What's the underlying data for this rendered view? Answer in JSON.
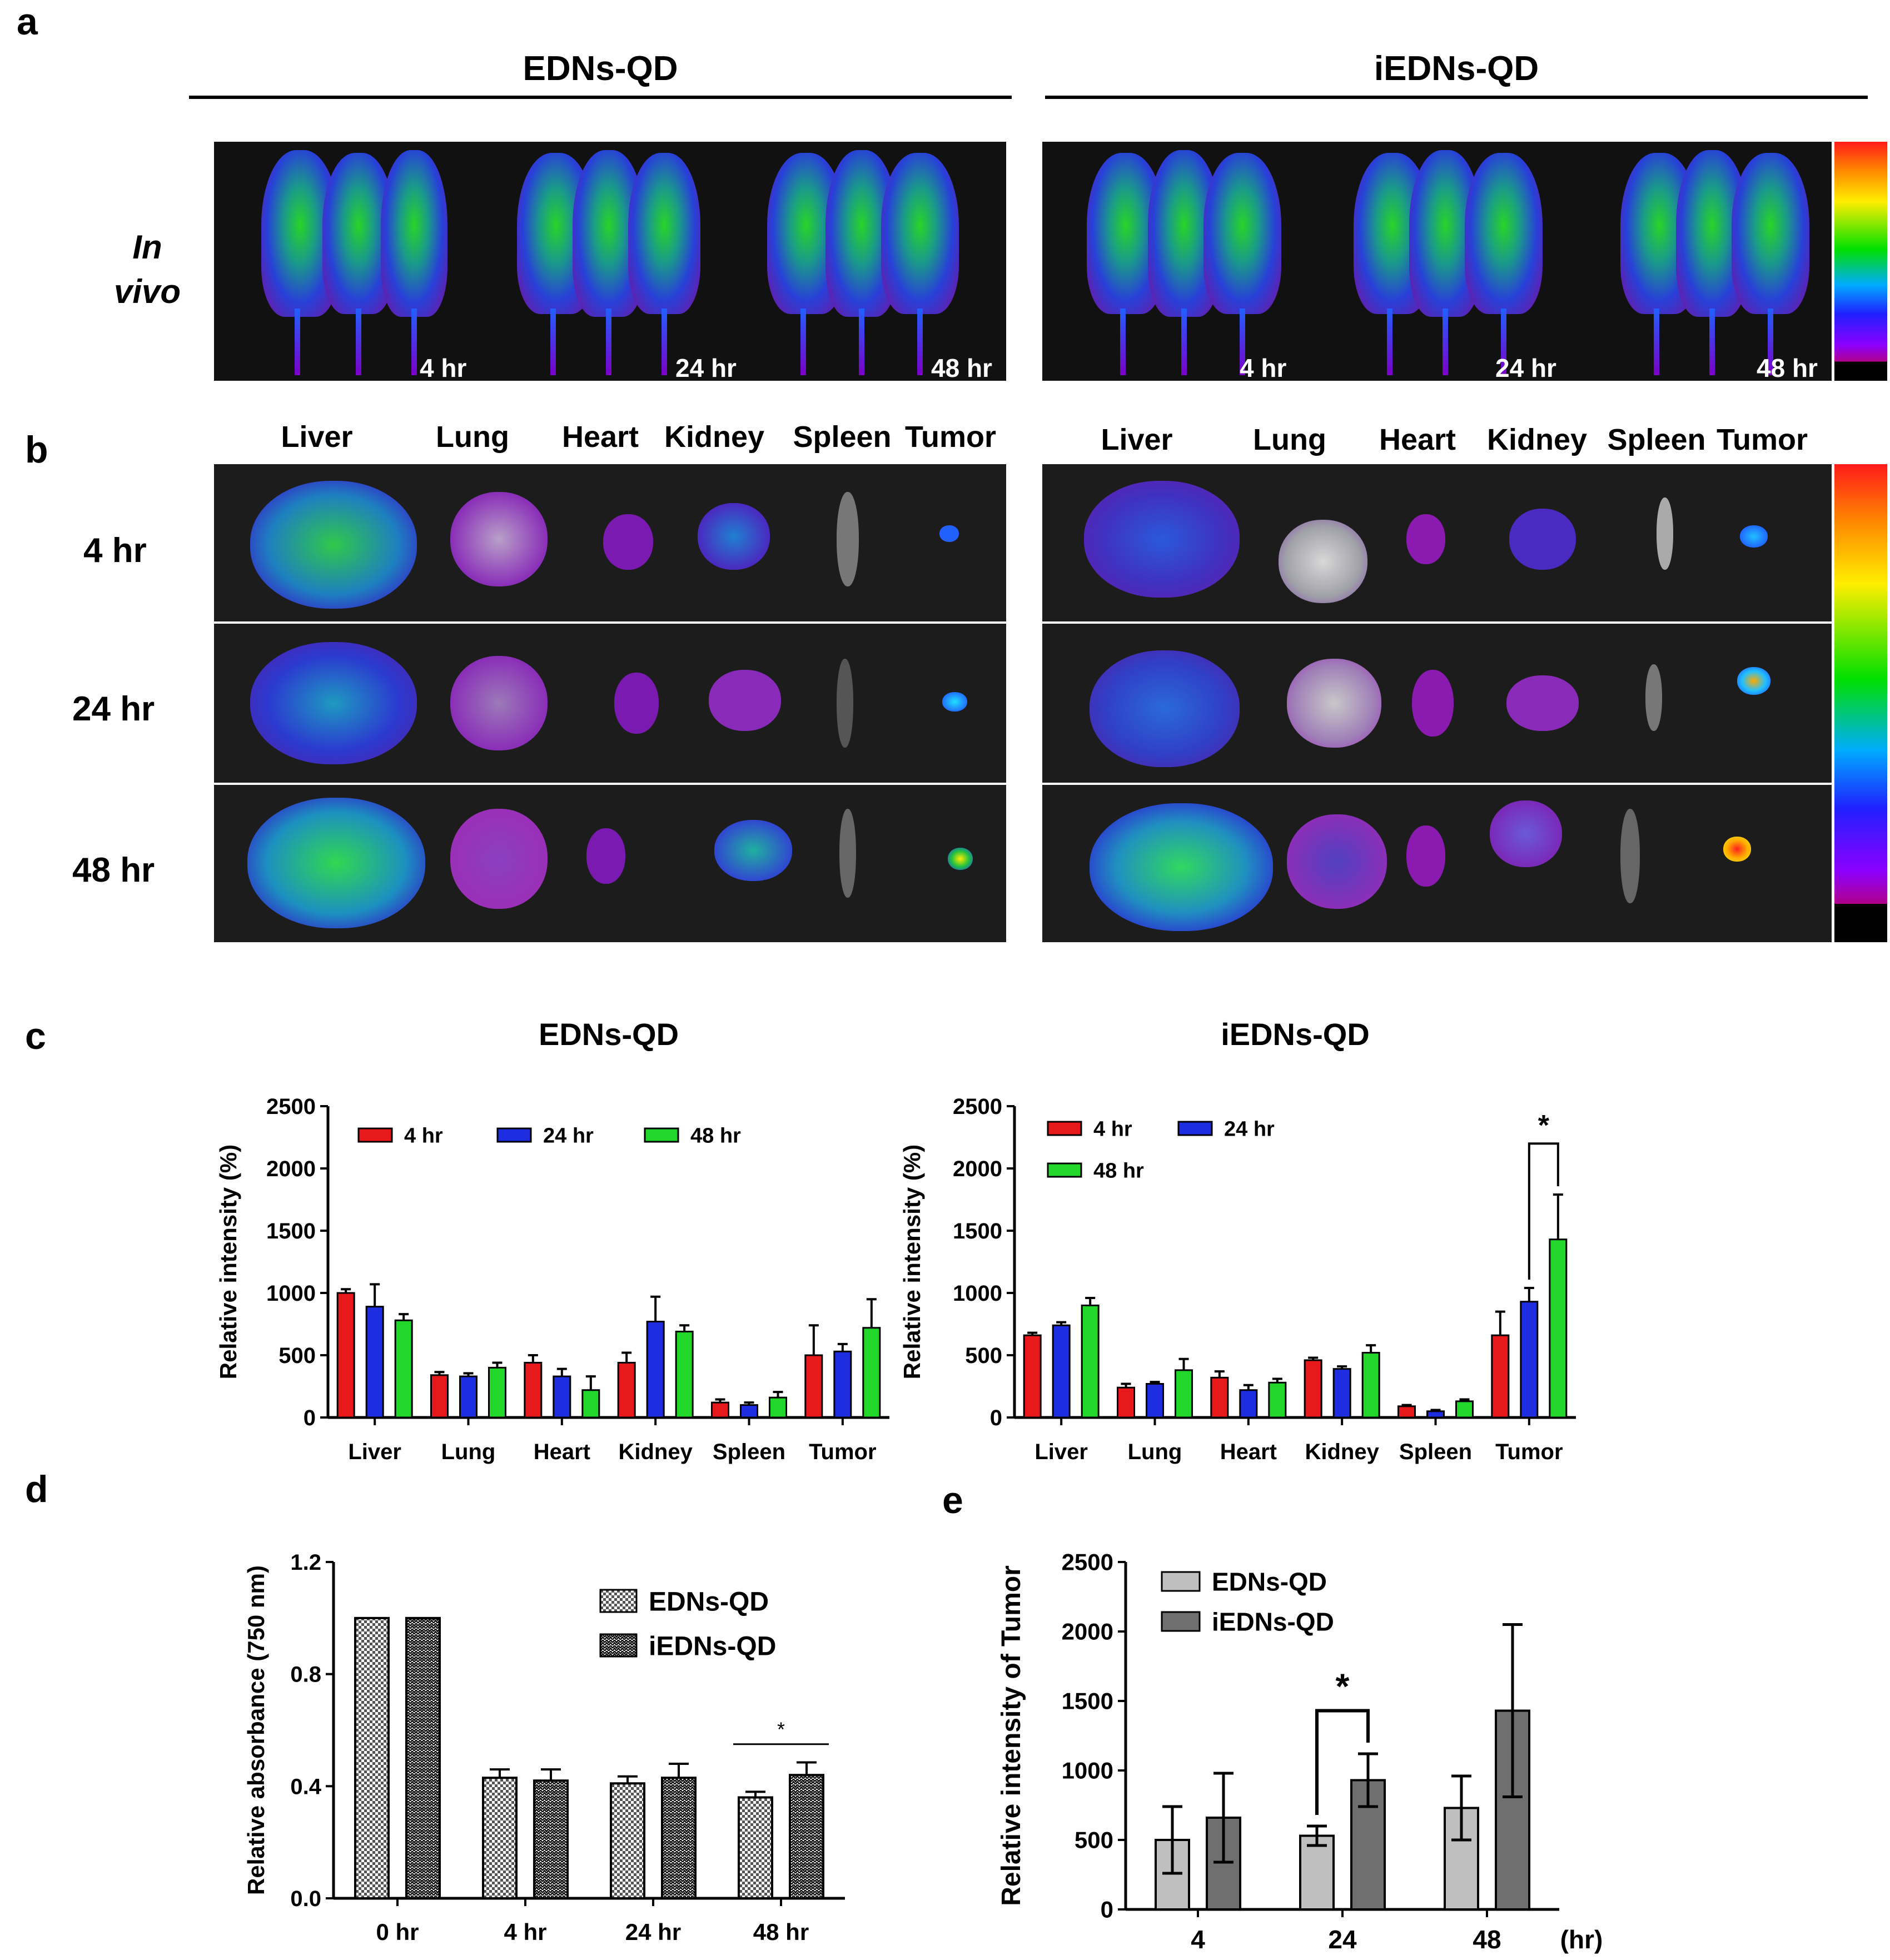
{
  "panel_labels": {
    "a": "a",
    "b": "b",
    "c": "c",
    "d": "d",
    "e": "e"
  },
  "panel_a": {
    "groups": [
      "EDNs-QD",
      "iEDNs-QD"
    ],
    "row_label": "In vivo",
    "timepoints": [
      "4 hr",
      "24 hr",
      "48 hr"
    ]
  },
  "panel_b": {
    "organs": [
      "Liver",
      "Lung",
      "Heart",
      "Kidney",
      "Spleen",
      "Tumor"
    ],
    "rows": [
      "4 hr",
      "24 hr",
      "48 hr"
    ]
  },
  "colors": {
    "4hr": "#e8191b",
    "24hr": "#1f2de0",
    "48hr": "#22d62a",
    "edns_gray": "#bfbfbf",
    "iedns_gray": "#6f6f6f"
  },
  "chart_data": [
    {
      "type": "bar",
      "title": "EDNs-QD",
      "ylabel": "Relative intensity (%)",
      "categories": [
        "Liver",
        "Lung",
        "Heart",
        "Kidney",
        "Spleen",
        "Tumor"
      ],
      "ylim": [
        0,
        2500
      ],
      "yticks": [
        "0",
        "500",
        "1000",
        "1500",
        "2000",
        "2500"
      ],
      "legend_position": "top",
      "series": [
        {
          "name": "4 hr",
          "values": [
            1000,
            340,
            440,
            440,
            120,
            500
          ],
          "errors": [
            30,
            25,
            60,
            80,
            25,
            240
          ]
        },
        {
          "name": "24 hr",
          "values": [
            890,
            330,
            330,
            770,
            100,
            530
          ],
          "errors": [
            180,
            25,
            60,
            200,
            20,
            60
          ]
        },
        {
          "name": "48 hr",
          "values": [
            780,
            400,
            220,
            690,
            160,
            720
          ],
          "errors": [
            50,
            40,
            110,
            50,
            45,
            230
          ]
        }
      ]
    },
    {
      "type": "bar",
      "title": "iEDNs-QD",
      "ylabel": "Relative intensity (%)",
      "categories": [
        "Liver",
        "Lung",
        "Heart",
        "Kidney",
        "Spleen",
        "Tumor"
      ],
      "ylim": [
        0,
        2500
      ],
      "yticks": [
        "0",
        "500",
        "1000",
        "1500",
        "2000",
        "2500"
      ],
      "legend_position": "top-left",
      "annotation": "*",
      "series": [
        {
          "name": "4 hr",
          "values": [
            660,
            240,
            320,
            460,
            90,
            660
          ],
          "errors": [
            20,
            30,
            50,
            20,
            10,
            190
          ]
        },
        {
          "name": "24 hr",
          "values": [
            740,
            270,
            220,
            390,
            50,
            930
          ],
          "errors": [
            25,
            15,
            40,
            20,
            10,
            110
          ]
        },
        {
          "name": "48 hr",
          "values": [
            900,
            380,
            280,
            520,
            130,
            1430
          ],
          "errors": [
            60,
            90,
            30,
            60,
            15,
            360
          ]
        }
      ]
    },
    {
      "type": "bar",
      "ylabel": "Relative absorbance (750 nm)",
      "categories": [
        "0 hr",
        "4 hr",
        "24 hr",
        "48 hr"
      ],
      "ylim": [
        0,
        1.2
      ],
      "yticks": [
        "0.0",
        "0.4",
        "0.8",
        "1.2"
      ],
      "legend_position": "top-right",
      "annotation": "*",
      "series": [
        {
          "name": "EDNs-QD",
          "values": [
            1.0,
            0.43,
            0.41,
            0.36
          ],
          "errors": [
            0,
            0.03,
            0.025,
            0.02
          ]
        },
        {
          "name": "iEDNs-QD",
          "values": [
            1.0,
            0.42,
            0.43,
            0.44
          ],
          "errors": [
            0,
            0.04,
            0.05,
            0.045
          ]
        }
      ]
    },
    {
      "type": "bar",
      "ylabel": "Relative intensity of Tumor",
      "categories": [
        "4",
        "24",
        "48"
      ],
      "xunit": "(hr)",
      "ylim": [
        0,
        2500
      ],
      "yticks": [
        "0",
        "500",
        "1000",
        "1500",
        "2000",
        "2500"
      ],
      "legend_position": "top-left",
      "annotation": "*",
      "series": [
        {
          "name": "EDNs-QD",
          "values": [
            500,
            530,
            730
          ],
          "errors": [
            240,
            70,
            230
          ]
        },
        {
          "name": "iEDNs-QD",
          "values": [
            660,
            930,
            1430
          ],
          "errors": [
            320,
            190,
            620
          ]
        }
      ]
    }
  ]
}
